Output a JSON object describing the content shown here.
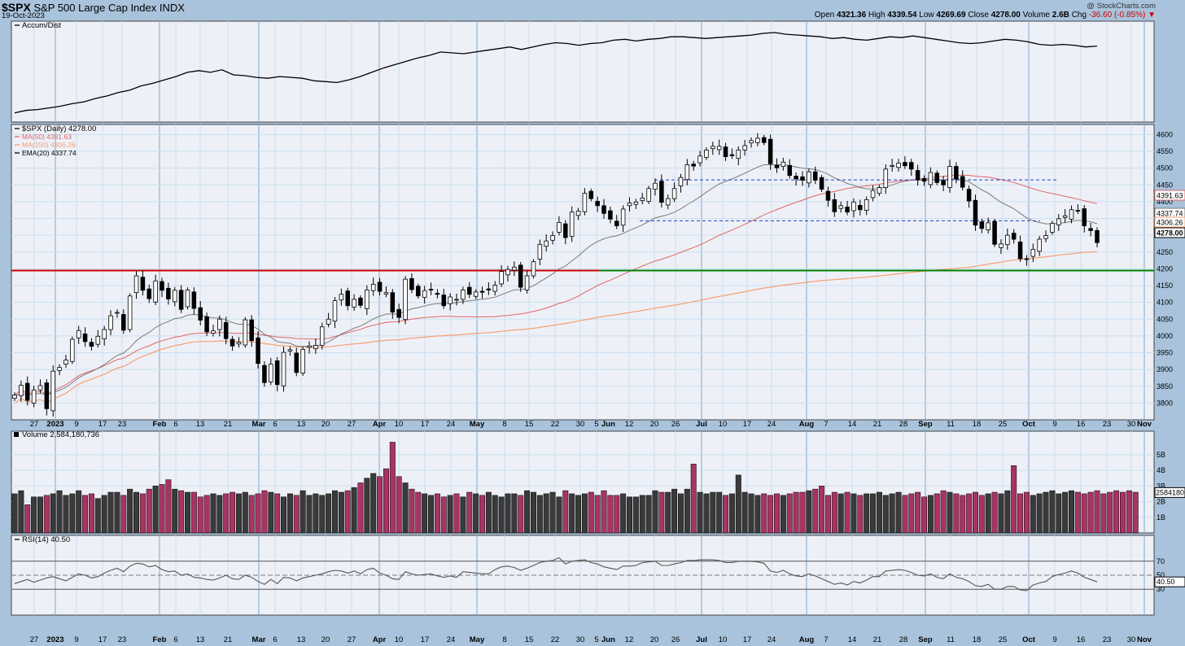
{
  "header": {
    "symbol": "$SPX",
    "name": "S&P 500 Large Cap Index",
    "exchange": "INDX",
    "date": "19-Oct-2023",
    "watermark": "@ StockCharts.com",
    "open_label": "Open",
    "open": "4321.36",
    "high_label": "High",
    "high": "4339.54",
    "low_label": "Low",
    "low": "4269.69",
    "close_label": "Close",
    "close": "4278.00",
    "volume_label": "Volume",
    "volume": "2.6B",
    "chg_label": "Chg",
    "chg": "-36.60 (-0.85%)",
    "chg_arrow": "▼"
  },
  "legends": {
    "ad": "Accum/Dist",
    "price": "$SPX (Daily) 4278.00",
    "ma50": "MA(50) 4391.63",
    "ma150": "MA(150) 4306.26",
    "ema20": "EMA(20) 4337.74",
    "vol": "Volume 2,584,180,736",
    "rsi": "RSI(14) 40.50"
  },
  "colors": {
    "bg": "#a9c3dc",
    "panel": "#eef0f7",
    "grid": "#c8e0f2",
    "up": "#ffffff",
    "down": "#000000",
    "ma50": "#e06666",
    "ma150": "#f5a071",
    "ema20": "#7a7a7a",
    "resist": "#cc0000",
    "support": "#008000",
    "channel": "#1f3fc8",
    "vol_up": "#3a3a3a",
    "vol_down": "#a83463",
    "rsi": "#555555"
  },
  "chart_data": [
    {
      "type": "line",
      "title": "Accum/Dist",
      "series": [
        {
          "name": "Accum/Dist",
          "values": [
            0.05,
            0.08,
            0.09,
            0.11,
            0.13,
            0.16,
            0.18,
            0.22,
            0.25,
            0.29,
            0.32,
            0.37,
            0.4,
            0.44,
            0.48,
            0.53,
            0.55,
            0.53,
            0.56,
            0.5,
            0.49,
            0.47,
            0.46,
            0.48,
            0.47,
            0.46,
            0.43,
            0.42,
            0.41,
            0.44,
            0.48,
            0.53,
            0.58,
            0.62,
            0.66,
            0.7,
            0.73,
            0.77,
            0.76,
            0.75,
            0.77,
            0.79,
            0.81,
            0.83,
            0.8,
            0.83,
            0.86,
            0.88,
            0.87,
            0.85,
            0.87,
            0.88,
            0.91,
            0.92,
            0.9,
            0.92,
            0.93,
            0.95,
            0.95,
            0.94,
            0.93,
            0.94,
            0.95,
            0.96,
            0.97,
            0.99,
            1.0,
            0.98,
            0.97,
            0.96,
            0.95,
            0.93,
            0.94,
            0.92,
            0.91,
            0.93,
            0.95,
            0.94,
            0.96,
            0.94,
            0.92,
            0.9,
            0.88,
            0.87,
            0.88,
            0.9,
            0.92,
            0.91,
            0.89,
            0.86,
            0.85,
            0.86,
            0.85,
            0.83,
            0.84
          ]
        }
      ]
    },
    {
      "type": "candlestick",
      "title": "$SPX (Daily) 4278.00",
      "x": [
        "27",
        "2023",
        "9",
        "17",
        "23",
        "Feb",
        "6",
        "13",
        "21",
        "Mar",
        "6",
        "13",
        "20",
        "27",
        "Apr",
        "10",
        "17",
        "24",
        "May",
        "8",
        "15",
        "22",
        "30",
        "Jun",
        "5",
        "12",
        "20",
        "26",
        "Jul",
        "10",
        "17",
        "24",
        "Aug",
        "7",
        "14",
        "21",
        "28",
        "Sep",
        "11",
        "18",
        "25",
        "Oct",
        "9",
        "16",
        "23",
        "30",
        "Nov"
      ],
      "ylim": [
        3750,
        4630
      ],
      "yticks": [
        3800,
        3850,
        3900,
        3950,
        4000,
        4050,
        4100,
        4150,
        4200,
        4250,
        4300,
        4350,
        4400,
        4450,
        4500,
        4550,
        4600
      ],
      "closes": [
        3824,
        3853,
        3808,
        3839,
        3852,
        3783,
        3895,
        3906,
        3928,
        3990,
        4016,
        3983,
        3969,
        3999,
        4019,
        4060,
        4070,
        4017,
        4119,
        4179,
        4136,
        4111,
        4164,
        4136,
        4110,
        4136,
        4079,
        4137,
        4082,
        4047,
        4012,
        4015,
        4050,
        3992,
        3970,
        3981,
        4048,
        3986,
        3918,
        3861,
        3916,
        3855,
        3951,
        3959,
        3891,
        3960,
        3970,
        3972,
        4027,
        4050,
        4105,
        4124,
        4090,
        4109,
        4091,
        4137,
        4154,
        4133,
        4129,
        4071,
        4055,
        4169,
        4138,
        4119,
        4135,
        4137,
        4124,
        4090,
        4116,
        4109,
        4137,
        4124,
        4131,
        4130,
        4137,
        4151,
        4192,
        4198,
        4205,
        4145,
        4179,
        4221,
        4273,
        4283,
        4299,
        4338,
        4293,
        4369,
        4372,
        4425,
        4409,
        4388,
        4365,
        4348,
        4328,
        4378,
        4396,
        4399,
        4411,
        4439,
        4455,
        4398,
        4409,
        4439,
        4472,
        4510,
        4506,
        4536,
        4554,
        4565,
        4565,
        4534,
        4537,
        4554,
        4567,
        4582,
        4589,
        4576,
        4513,
        4501,
        4518,
        4478,
        4468,
        4464,
        4489,
        4464,
        4437,
        4404,
        4370,
        4388,
        4369,
        4399,
        4376,
        4406,
        4433,
        4442,
        4497,
        4508,
        4515,
        4507,
        4497,
        4465,
        4461,
        4487,
        4457,
        4450,
        4505,
        4467,
        4443,
        4402,
        4330,
        4320,
        4337,
        4273,
        4274,
        4300,
        4288,
        4230,
        4229,
        4258,
        4288,
        4299,
        4335,
        4349,
        4358,
        4376,
        4373,
        4328,
        4314,
        4278
      ],
      "series": [
        {
          "name": "MA(50)",
          "last": 4391.63
        },
        {
          "name": "MA(150)",
          "last": 4306.26
        },
        {
          "name": "EMA(20)",
          "last": 4337.74
        }
      ],
      "annotations": [
        {
          "type": "resistance",
          "value": 4195
        },
        {
          "type": "support",
          "value": 4195
        },
        {
          "type": "channel_top",
          "value": 4460
        },
        {
          "type": "channel_bottom",
          "value": 4343
        }
      ]
    },
    {
      "type": "bar",
      "title": "Volume 2,584,180,736",
      "ylim": [
        0,
        6.5
      ],
      "ylabels": [
        "1B",
        "2B",
        "3B",
        "4B",
        "5B"
      ],
      "last": "2584180",
      "values": [
        2.5,
        2.7,
        1.8,
        2.3,
        2.3,
        2.4,
        2.5,
        2.7,
        2.4,
        2.5,
        2.7,
        2.4,
        2.5,
        2.2,
        2.4,
        2.6,
        2.6,
        2.4,
        2.8,
        2.6,
        2.5,
        2.8,
        3.0,
        3.1,
        3.4,
        2.8,
        2.7,
        2.6,
        2.6,
        2.3,
        2.4,
        2.5,
        2.4,
        2.5,
        2.6,
        2.5,
        2.6,
        2.4,
        2.5,
        2.7,
        2.6,
        2.5,
        2.3,
        2.5,
        2.4,
        2.7,
        2.4,
        2.5,
        2.4,
        2.5,
        2.7,
        2.6,
        2.7,
        2.9,
        3.2,
        3.5,
        3.8,
        3.6,
        4.1,
        5.8,
        3.6,
        3.2,
        2.8,
        2.6,
        2.5,
        2.4,
        2.5,
        2.3,
        2.4,
        2.5,
        2.3,
        2.6,
        2.5,
        2.4,
        2.6,
        2.4,
        2.3,
        2.5,
        2.5,
        2.4,
        2.7,
        2.6,
        2.4,
        2.5,
        2.6,
        2.3,
        2.7,
        2.5,
        2.4,
        2.5,
        2.6,
        2.4,
        2.7,
        2.4,
        2.4,
        2.5,
        2.3,
        2.3,
        2.4,
        2.4,
        2.7,
        2.6,
        2.6,
        2.8,
        2.5,
        2.8,
        4.4,
        2.6,
        2.5,
        2.6,
        2.6,
        2.4,
        2.5,
        3.7,
        2.6,
        2.5,
        2.4,
        2.5,
        2.4,
        2.5,
        2.4,
        2.5,
        2.6,
        2.6,
        2.7,
        2.8,
        3.0,
        2.4,
        2.6,
        2.5,
        2.6,
        2.5,
        2.4,
        2.5,
        2.5,
        2.6,
        2.4,
        2.5,
        2.6,
        2.4,
        2.5,
        2.6,
        2.3,
        2.4,
        2.5,
        2.7,
        2.6,
        2.5,
        2.4,
        2.5,
        2.6,
        2.4,
        2.5,
        2.6,
        2.5,
        2.7,
        4.3,
        2.5,
        2.6,
        2.4,
        2.5,
        2.6,
        2.7,
        2.5,
        2.6,
        2.7,
        2.6,
        2.5,
        2.6,
        2.7,
        2.5,
        2.6,
        2.7,
        2.6,
        2.7,
        2.6
      ]
    },
    {
      "type": "line",
      "title": "RSI(14) 40.50",
      "ylim": [
        0,
        100
      ],
      "yticks": [
        30,
        50,
        70
      ],
      "last": "40.50",
      "series": [
        {
          "name": "RSI(14)",
          "values": [
            38,
            41,
            44,
            40,
            43,
            46,
            48,
            45,
            42,
            47,
            52,
            50,
            46,
            48,
            53,
            57,
            60,
            55,
            63,
            67,
            66,
            62,
            64,
            58,
            55,
            56,
            50,
            52,
            47,
            46,
            44,
            43,
            46,
            50,
            45,
            44,
            50,
            47,
            41,
            37,
            44,
            38,
            47,
            46,
            42,
            46,
            48,
            50,
            52,
            55,
            57,
            56,
            53,
            56,
            52,
            58,
            60,
            53,
            50,
            45,
            44,
            55,
            52,
            50,
            51,
            52,
            49,
            47,
            49,
            47,
            55,
            54,
            53,
            52,
            52,
            58,
            62,
            63,
            61,
            57,
            60,
            64,
            68,
            70,
            71,
            75,
            66,
            70,
            71,
            72,
            68,
            66,
            62,
            60,
            58,
            63,
            63,
            64,
            68,
            69,
            70,
            64,
            64,
            66,
            68,
            71,
            71,
            72,
            72,
            72,
            71,
            68,
            68,
            70,
            70,
            70,
            69,
            67,
            56,
            54,
            57,
            52,
            49,
            48,
            52,
            49,
            45,
            41,
            37,
            39,
            36,
            41,
            39,
            43,
            48,
            48,
            56,
            57,
            58,
            57,
            54,
            50,
            49,
            52,
            47,
            45,
            52,
            47,
            45,
            41,
            35,
            34,
            37,
            30,
            30,
            34,
            34,
            29,
            28,
            36,
            39,
            41,
            48,
            51,
            53,
            56,
            53,
            47,
            44,
            40.5
          ]
        }
      ]
    }
  ]
}
